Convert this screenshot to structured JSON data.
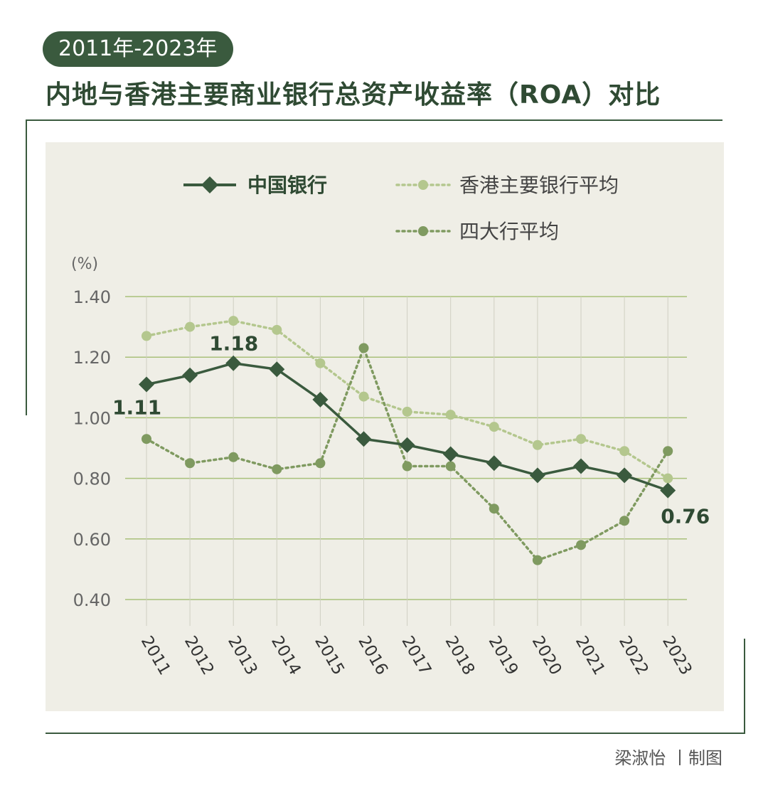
{
  "header": {
    "subtitle": "2011年-2023年",
    "title": "内地与香港主要商业银行总资产收益率（ROA）对比"
  },
  "credit": "梁淑怡 丨制图",
  "chart_data": {
    "type": "line",
    "unit_label": "(%)",
    "ylim": [
      0.4,
      1.4
    ],
    "yticks": [
      "1.40",
      "1.20",
      "1.00",
      "0.80",
      "0.60",
      "0.40"
    ],
    "ytick_values": [
      1.4,
      1.2,
      1.0,
      0.8,
      0.6,
      0.4
    ],
    "categories": [
      "2011",
      "2012",
      "2013",
      "2014",
      "2015",
      "2016",
      "2017",
      "2018",
      "2019",
      "2020",
      "2021",
      "2022",
      "2023"
    ],
    "grid": true,
    "legend_position": "top",
    "series": [
      {
        "name": "中国银行",
        "style": "solid-diamond",
        "color": "#3a5a3e",
        "values": [
          1.11,
          1.14,
          1.18,
          1.16,
          1.06,
          0.93,
          0.91,
          0.88,
          0.85,
          0.81,
          0.84,
          0.81,
          0.76
        ]
      },
      {
        "name": "香港主要银行平均",
        "style": "dotted-circle",
        "color": "#b4c78e",
        "values": [
          1.27,
          1.3,
          1.32,
          1.29,
          1.18,
          1.07,
          1.02,
          1.01,
          0.97,
          0.91,
          0.93,
          0.89,
          0.8
        ]
      },
      {
        "name": "四大行平均",
        "style": "dotted-circle",
        "color": "#7f9a60",
        "values": [
          0.93,
          0.85,
          0.87,
          0.83,
          0.85,
          1.23,
          0.84,
          0.84,
          0.7,
          0.53,
          0.58,
          0.66,
          0.89
        ]
      }
    ],
    "annotations": [
      {
        "series": 0,
        "index": 0,
        "text": "1.11"
      },
      {
        "series": 0,
        "index": 2,
        "text": "1.18"
      },
      {
        "series": 0,
        "index": 12,
        "text": "0.76"
      }
    ]
  }
}
